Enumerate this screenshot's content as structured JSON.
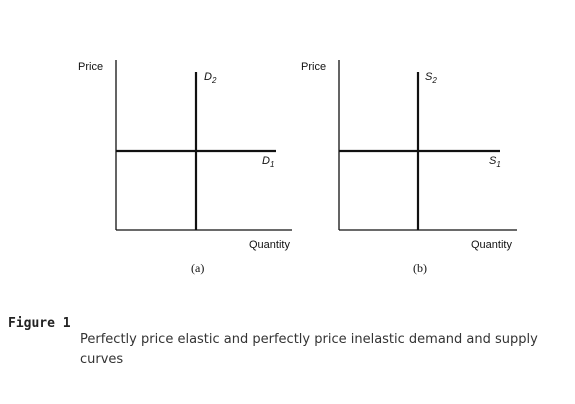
{
  "panels": [
    {
      "y_axis_label": "Price",
      "x_axis_label": "Quantity",
      "panel_label": "(a)",
      "vertical_curve": {
        "letter": "D",
        "subscript": "2"
      },
      "horizontal_curve": {
        "letter": "D",
        "subscript": "1"
      }
    },
    {
      "y_axis_label": "Price",
      "x_axis_label": "Quantity",
      "panel_label": "(b)",
      "vertical_curve": {
        "letter": "S",
        "subscript": "2"
      },
      "horizontal_curve": {
        "letter": "S",
        "subscript": "1"
      }
    }
  ],
  "figure": {
    "label": "Figure 1",
    "caption": "Perfectly price elastic and perfectly price inelastic demand and supply curves"
  }
}
